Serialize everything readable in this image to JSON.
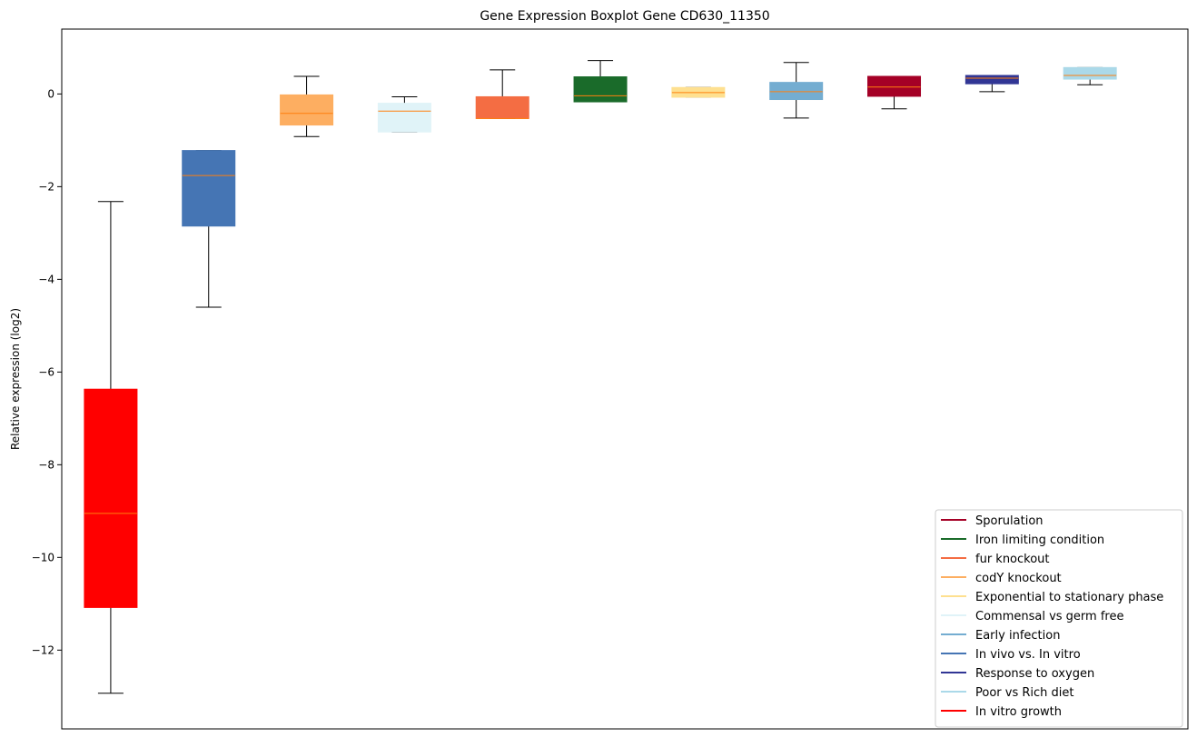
{
  "chart_data": {
    "type": "boxplot",
    "title": "Gene Expression Boxplot Gene CD630_11350",
    "xlabel": "",
    "ylabel": "Relative expression (log2)",
    "ylim": [
      -13.7,
      1.4
    ],
    "yticks": [
      0,
      -2,
      -4,
      -6,
      -8,
      -10,
      -12
    ],
    "ytick_labels": [
      "0",
      "−2",
      "−4",
      "−6",
      "−8",
      "−10",
      "−12"
    ],
    "grid": false,
    "legend_position": "lower-right",
    "median_color": "#ff7f0e",
    "series": [
      {
        "name": "In vitro growth",
        "color": "#ff0000",
        "whisker_low": -12.93,
        "q1": -11.08,
        "median": -9.05,
        "q3": -6.37,
        "whisker_high": -2.32
      },
      {
        "name": "In vivo vs. In vitro",
        "color": "#4575b4",
        "whisker_low": -4.6,
        "q1": -2.85,
        "median": -1.76,
        "q3": -1.22,
        "whisker_high": -1.22
      },
      {
        "name": "codY knockout",
        "color": "#fdae61",
        "whisker_low": -0.92,
        "q1": -0.67,
        "median": -0.42,
        "q3": -0.02,
        "whisker_high": 0.38
      },
      {
        "name": "Commensal vs germ free",
        "color": "#e0f3f8",
        "whisker_low": -0.82,
        "q1": -0.82,
        "median": -0.37,
        "q3": -0.2,
        "whisker_high": -0.06
      },
      {
        "name": "fur knockout",
        "color": "#f46d43",
        "whisker_low": -0.53,
        "q1": -0.53,
        "median": -0.53,
        "q3": -0.06,
        "whisker_high": 0.52
      },
      {
        "name": "Iron limiting condition",
        "color": "#1a6b2a",
        "whisker_low": -0.17,
        "q1": -0.17,
        "median": -0.04,
        "q3": 0.37,
        "whisker_high": 0.72
      },
      {
        "name": "Exponential to stationary phase",
        "color": "#fee090",
        "whisker_low": -0.07,
        "q1": -0.07,
        "median": 0.03,
        "q3": 0.14,
        "whisker_high": 0.14
      },
      {
        "name": "Early infection",
        "color": "#74add1",
        "whisker_low": -0.52,
        "q1": -0.12,
        "median": 0.05,
        "q3": 0.25,
        "whisker_high": 0.68
      },
      {
        "name": "Sporulation",
        "color": "#a50026",
        "whisker_low": -0.32,
        "q1": -0.05,
        "median": 0.15,
        "q3": 0.38,
        "whisker_high": 0.38
      },
      {
        "name": "Response to oxygen",
        "color": "#313695",
        "whisker_low": 0.05,
        "q1": 0.22,
        "median": 0.34,
        "q3": 0.4,
        "whisker_high": 0.4
      },
      {
        "name": "Poor vs Rich diet",
        "color": "#abd9e9",
        "whisker_low": 0.2,
        "q1": 0.32,
        "median": 0.4,
        "q3": 0.57,
        "whisker_high": 0.57
      }
    ],
    "legend": [
      {
        "label": "Sporulation",
        "color": "#a50026"
      },
      {
        "label": "Iron limiting condition",
        "color": "#1a6b2a"
      },
      {
        "label": "fur knockout",
        "color": "#f46d43"
      },
      {
        "label": "codY knockout",
        "color": "#fdae61"
      },
      {
        "label": "Exponential to stationary phase",
        "color": "#fee090"
      },
      {
        "label": "Commensal vs germ free",
        "color": "#e0f3f8"
      },
      {
        "label": "Early infection",
        "color": "#74add1"
      },
      {
        "label": "In vivo vs. In vitro",
        "color": "#4575b4"
      },
      {
        "label": "Response to oxygen",
        "color": "#313695"
      },
      {
        "label": "Poor vs Rich diet",
        "color": "#abd9e9"
      },
      {
        "label": "In vitro growth",
        "color": "#ff0000"
      }
    ]
  }
}
